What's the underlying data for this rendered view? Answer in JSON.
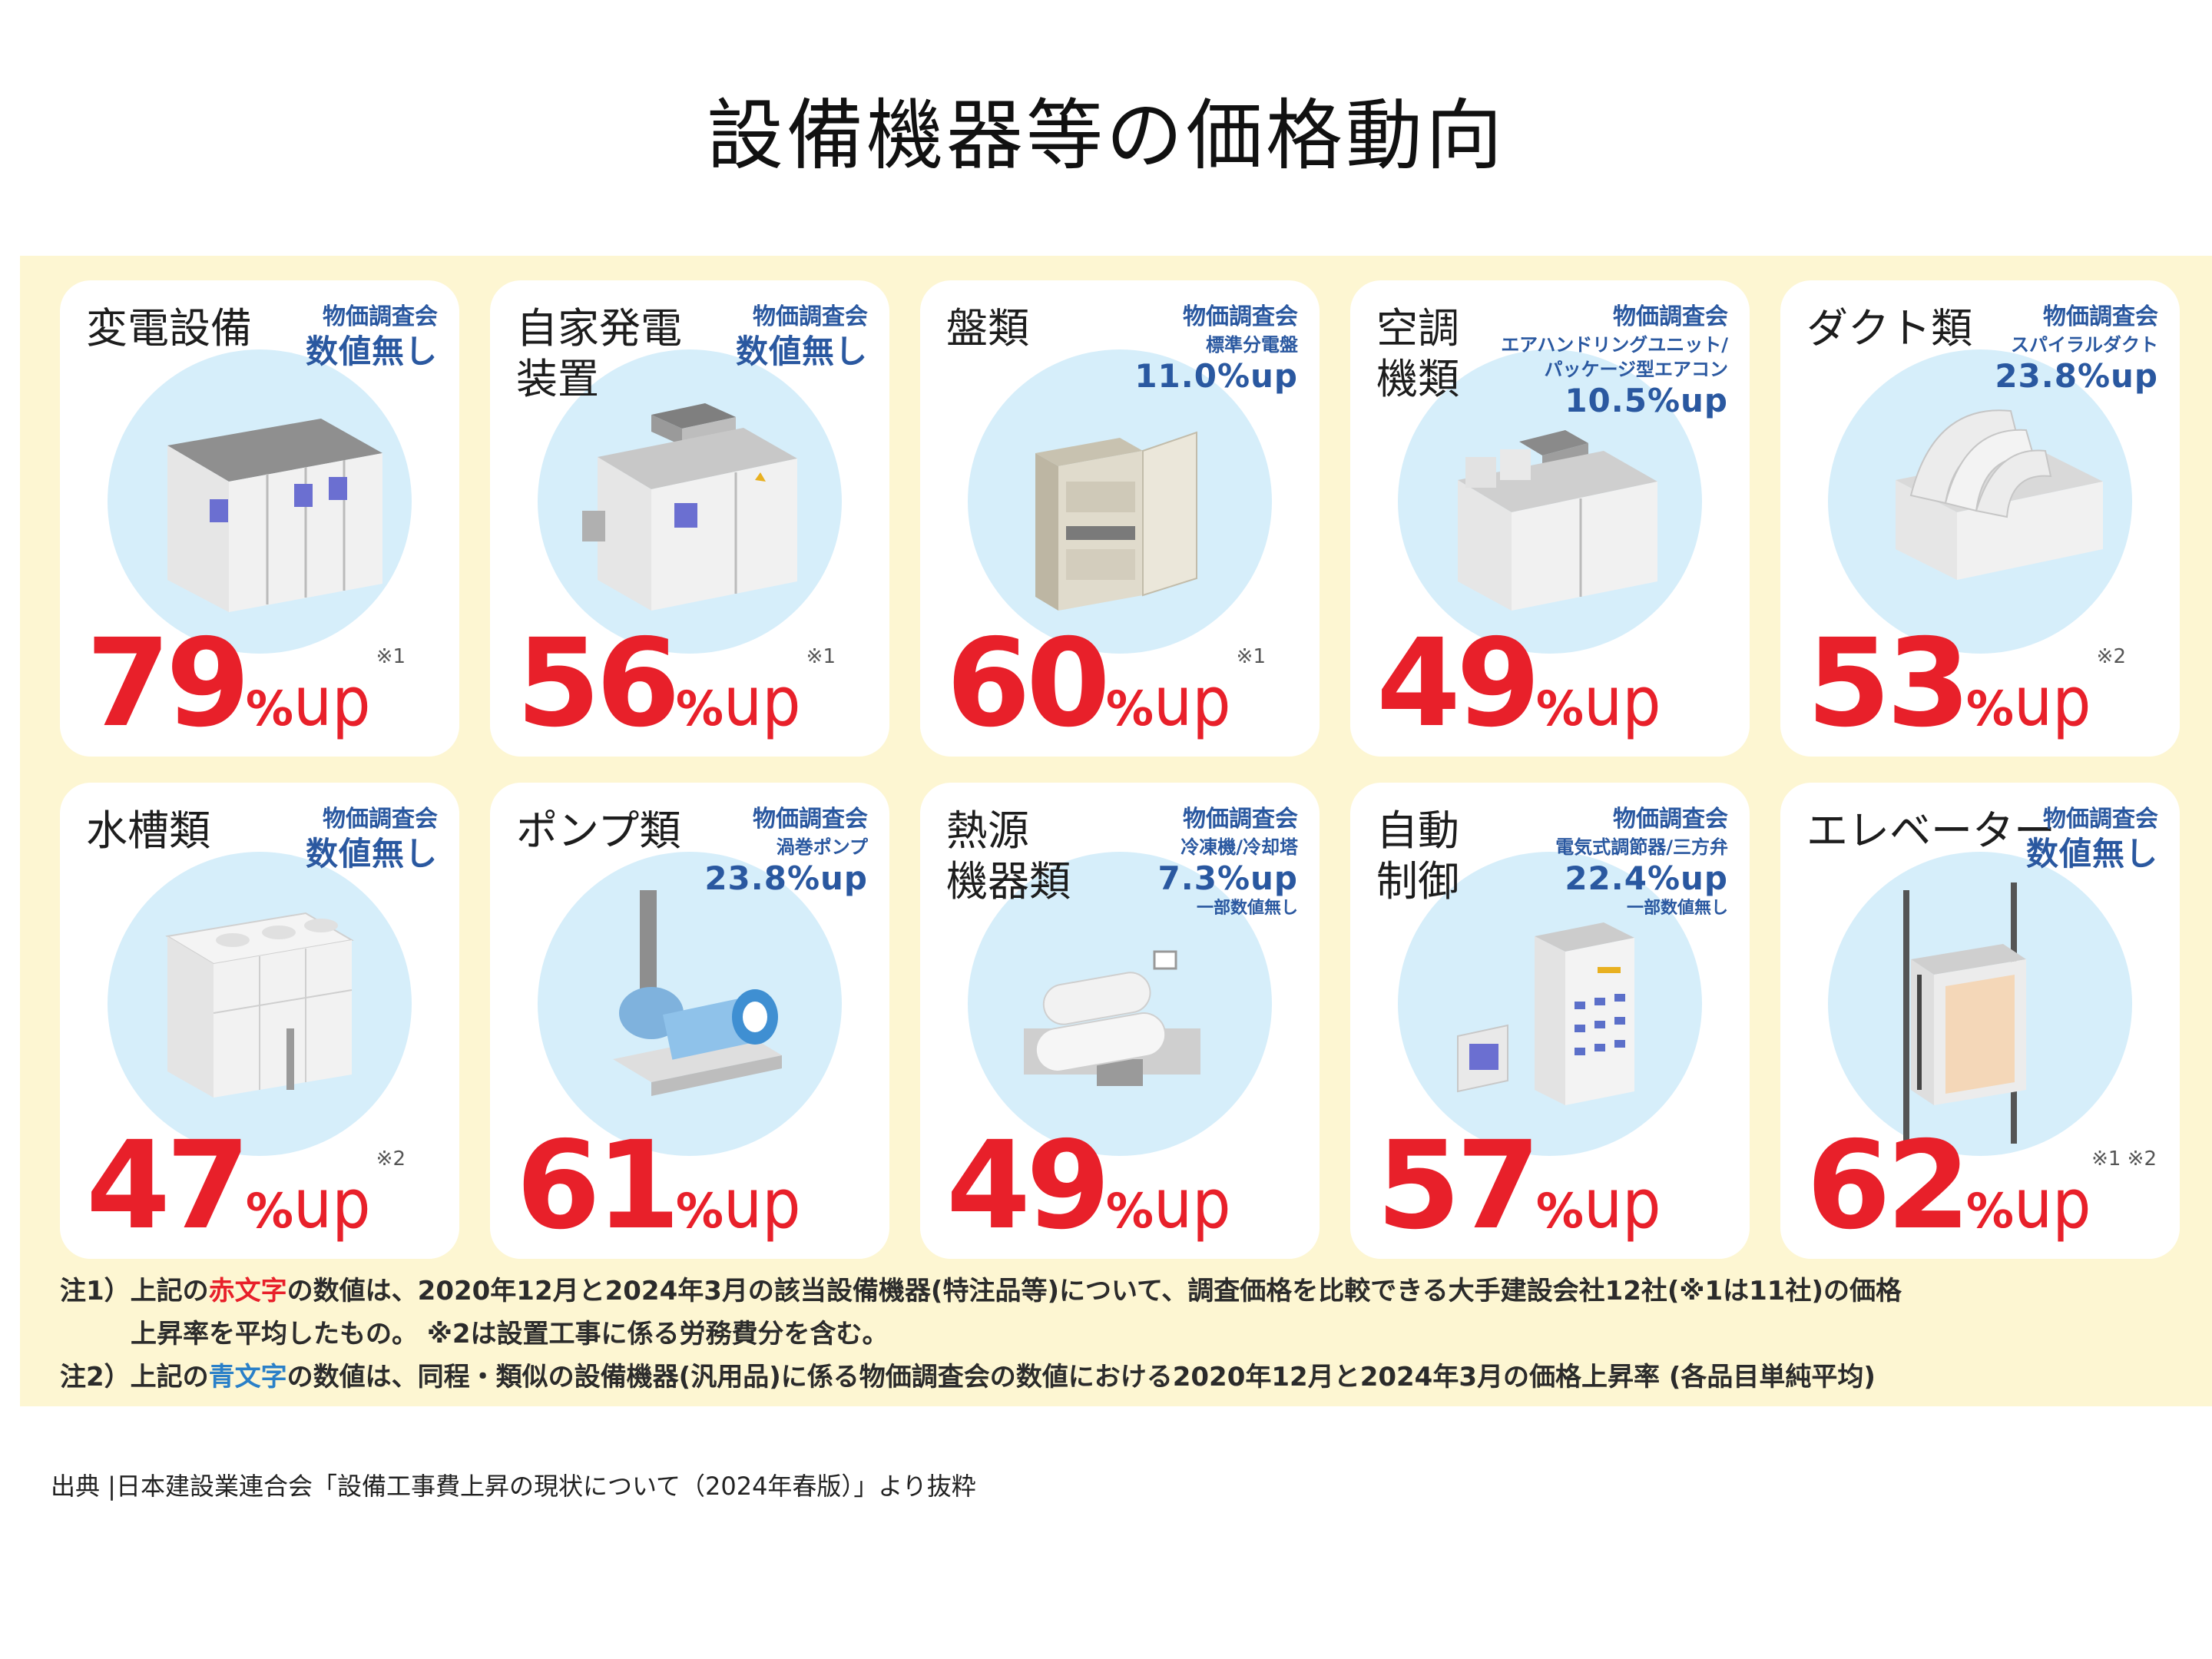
{
  "title": "設備機器等の価格動向",
  "cards": [
    {
      "name": "変電設備",
      "org": "物価調査会",
      "item": "",
      "val": "数値無し",
      "note": "",
      "pct": "79",
      "unit": "%",
      "up": "up",
      "mark": "※1"
    },
    {
      "name": "自家発電\n装置",
      "org": "物価調査会",
      "item": "",
      "val": "数値無し",
      "note": "",
      "pct": "56",
      "unit": "%",
      "up": "up",
      "mark": "※1"
    },
    {
      "name": "盤類",
      "org": "物価調査会",
      "item": "標準分電盤",
      "val": "11.0%up",
      "note": "",
      "pct": "60",
      "unit": "%",
      "up": "up",
      "mark": "※1"
    },
    {
      "name": "空調\n機類",
      "org": "物価調査会",
      "item": "エアハンドリングユニット/\nパッケージ型エアコン",
      "val": "10.5%up",
      "note": "",
      "pct": "49",
      "unit": "%",
      "up": "up",
      "mark": ""
    },
    {
      "name": "ダクト類",
      "org": "物価調査会",
      "item": "スパイラルダクト",
      "val": "23.8%up",
      "note": "",
      "pct": "53",
      "unit": "%",
      "up": "up",
      "mark": "※2"
    },
    {
      "name": "水槽類",
      "org": "物価調査会",
      "item": "",
      "val": "数値無し",
      "note": "",
      "pct": "47",
      "unit": "%",
      "up": "up",
      "mark": "※2"
    },
    {
      "name": "ポンプ類",
      "org": "物価調査会",
      "item": "渦巻ポンプ",
      "val": "23.8%up",
      "note": "",
      "pct": "61",
      "unit": "%",
      "up": "up",
      "mark": ""
    },
    {
      "name": "熱源\n機器類",
      "org": "物価調査会",
      "item": "冷凍機/冷却塔",
      "val": "7.3%up",
      "note": "一部数値無し",
      "pct": "49",
      "unit": "%",
      "up": "up",
      "mark": ""
    },
    {
      "name": "自動\n制御",
      "org": "物価調査会",
      "item": "電気式調節器/三方弁",
      "val": "22.4%up",
      "note": "一部数値無し",
      "pct": "57",
      "unit": "%",
      "up": "up",
      "mark": ""
    },
    {
      "name": "エレベーター",
      "org": "物価調査会",
      "item": "",
      "val": "数値無し",
      "note": "",
      "pct": "62",
      "unit": "%",
      "up": "up",
      "mark": "※1 ※2"
    }
  ],
  "notes": {
    "n1_a": "注1）上記の",
    "n1_red": "赤文字",
    "n1_b": "の数値は、2020年12月と2024年3月の該当設備機器(特注品等)について、調査価格を比較できる大手建設会社12社(※1は11社)の価格",
    "n1_c": "上昇率を平均したもの。 ※2は設置工事に係る労務費分を含む。",
    "n2_a": "注2）上記の",
    "n2_blue": "青文字",
    "n2_b": "の数値は、同程・類似の設備機器(汎用品)に係る物価調査会の数値における2020年12月と2024年3月の価格上昇率 (各品目単純平均)"
  },
  "source": "出典 |日本建設業連合会「設備工事費上昇の現状について（2024年春版）」より抜粋",
  "colors": {
    "red": "#e8202a",
    "blue": "#2a58a0",
    "panel": "#fdf6d2",
    "circle": "#d6eefa"
  }
}
